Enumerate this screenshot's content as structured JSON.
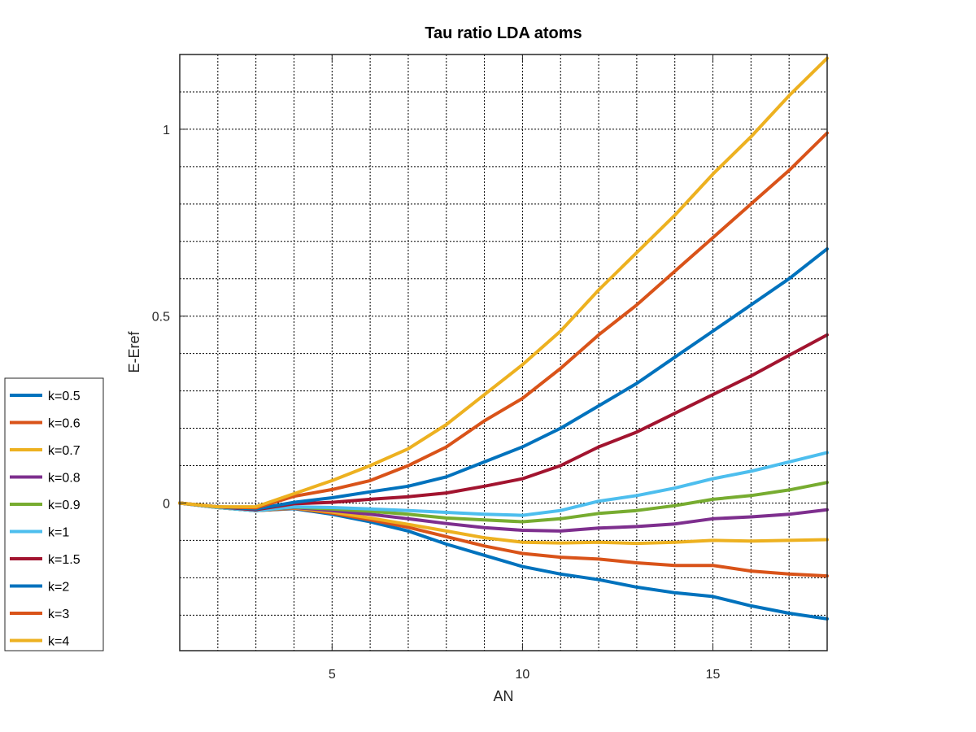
{
  "chart_data": {
    "type": "line",
    "title": "Tau ratio LDA atoms",
    "xlabel": "AN",
    "ylabel": "E-Eref",
    "xlim": [
      1,
      18
    ],
    "ylim": [
      -0.395,
      1.2
    ],
    "xticks": [
      5,
      10,
      15
    ],
    "yticks": [
      0,
      0.5,
      1
    ],
    "xtick_labels": [
      "5",
      "10",
      "15"
    ],
    "ytick_labels": [
      "0",
      "0.5",
      "1"
    ],
    "grid": true,
    "grid_minor": true,
    "legend_position": "outside-left",
    "x": [
      1,
      2,
      3,
      4,
      5,
      6,
      7,
      8,
      9,
      10,
      11,
      12,
      13,
      14,
      15,
      16,
      17,
      18
    ],
    "series": [
      {
        "name": "k=0.5",
        "color": "#0072BD",
        "values": [
          0,
          -0.012,
          -0.02,
          -0.015,
          -0.03,
          -0.05,
          -0.075,
          -0.11,
          -0.14,
          -0.17,
          -0.19,
          -0.205,
          -0.225,
          -0.24,
          -0.25,
          -0.275,
          -0.295,
          -0.31
        ]
      },
      {
        "name": "k=0.6",
        "color": "#D95319",
        "values": [
          0,
          -0.012,
          -0.02,
          -0.014,
          -0.027,
          -0.045,
          -0.065,
          -0.09,
          -0.115,
          -0.135,
          -0.145,
          -0.15,
          -0.16,
          -0.167,
          -0.167,
          -0.182,
          -0.19,
          -0.195
        ]
      },
      {
        "name": "k=0.7",
        "color": "#EDB120",
        "values": [
          0,
          -0.012,
          -0.02,
          -0.013,
          -0.024,
          -0.04,
          -0.057,
          -0.075,
          -0.093,
          -0.105,
          -0.107,
          -0.105,
          -0.108,
          -0.105,
          -0.1,
          -0.102,
          -0.1,
          -0.098
        ]
      },
      {
        "name": "k=0.8",
        "color": "#7E2F8E",
        "values": [
          0,
          -0.012,
          -0.02,
          -0.012,
          -0.02,
          -0.03,
          -0.042,
          -0.055,
          -0.066,
          -0.073,
          -0.075,
          -0.067,
          -0.063,
          -0.056,
          -0.042,
          -0.037,
          -0.03,
          -0.018
        ]
      },
      {
        "name": "k=0.9",
        "color": "#77AC30",
        "values": [
          0,
          -0.012,
          -0.02,
          -0.011,
          -0.016,
          -0.022,
          -0.03,
          -0.04,
          -0.045,
          -0.05,
          -0.042,
          -0.028,
          -0.02,
          -0.007,
          0.01,
          0.02,
          0.035,
          0.055
        ]
      },
      {
        "name": "k=1",
        "color": "#4DBEEE",
        "values": [
          0,
          -0.012,
          -0.02,
          -0.01,
          -0.012,
          -0.016,
          -0.02,
          -0.025,
          -0.03,
          -0.033,
          -0.02,
          0.005,
          0.02,
          0.04,
          0.065,
          0.085,
          0.11,
          0.135
        ]
      },
      {
        "name": "k=1.5",
        "color": "#A2142F",
        "values": [
          0,
          -0.01,
          -0.018,
          -0.002,
          0.002,
          0.01,
          0.017,
          0.027,
          0.045,
          0.065,
          0.1,
          0.15,
          0.19,
          0.24,
          0.29,
          0.34,
          0.395,
          0.45
        ]
      },
      {
        "name": "k=2",
        "color": "#0072BD",
        "values": [
          0,
          -0.01,
          -0.016,
          0.002,
          0.014,
          0.03,
          0.045,
          0.07,
          0.11,
          0.15,
          0.2,
          0.26,
          0.32,
          0.39,
          0.46,
          0.53,
          0.6,
          0.68
        ]
      },
      {
        "name": "k=3",
        "color": "#D95319",
        "values": [
          0,
          -0.01,
          -0.013,
          0.018,
          0.036,
          0.06,
          0.1,
          0.15,
          0.22,
          0.28,
          0.36,
          0.45,
          0.53,
          0.62,
          0.71,
          0.8,
          0.89,
          0.99
        ]
      },
      {
        "name": "k=4",
        "color": "#EDB120",
        "values": [
          0,
          -0.01,
          -0.01,
          0.025,
          0.06,
          0.1,
          0.145,
          0.21,
          0.29,
          0.37,
          0.46,
          0.57,
          0.67,
          0.77,
          0.88,
          0.98,
          1.09,
          1.19
        ]
      }
    ]
  }
}
